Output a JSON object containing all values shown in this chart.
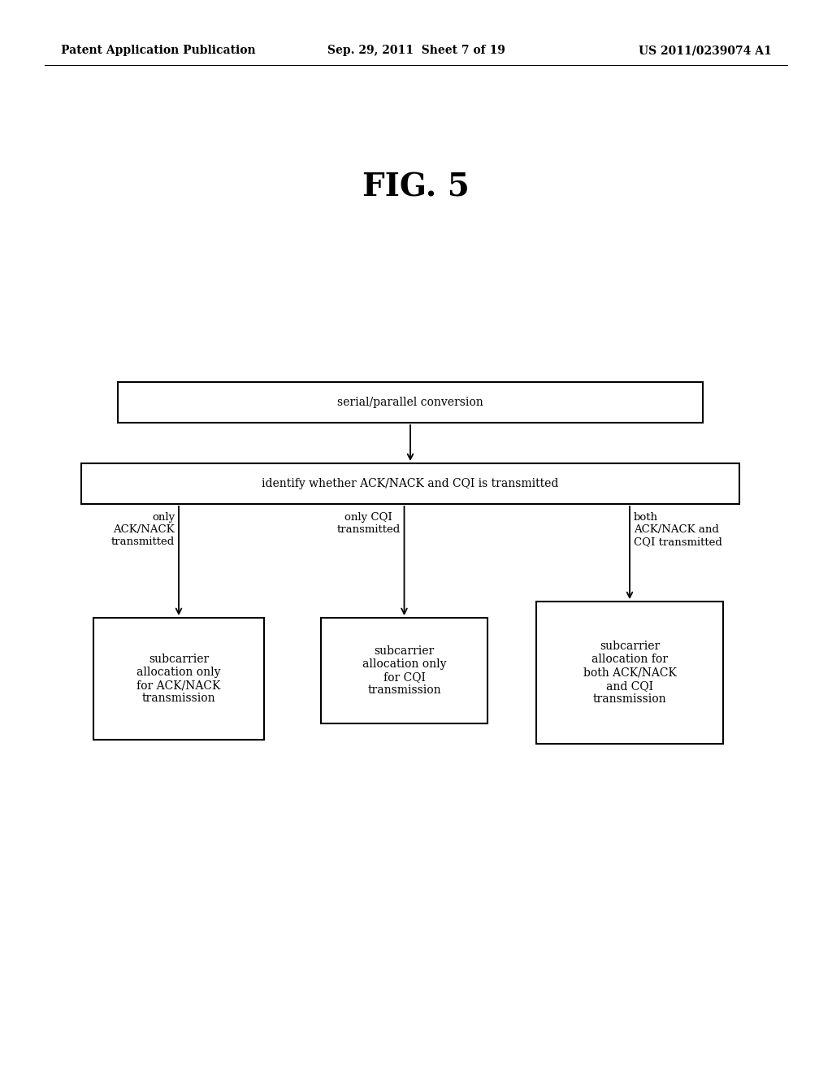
{
  "background_color": "#ffffff",
  "header_left": "Patent Application Publication",
  "header_center": "Sep. 29, 2011  Sheet 7 of 19",
  "header_right": "US 2011/0239074 A1",
  "fig_title": "FIG. 5",
  "box1_text": "serial/parallel conversion",
  "box2_text": "identify whether ACK/NACK and CQI is transmitted",
  "box3_text": "subcarrier\nallocation only\nfor ACK/NACK\ntransmission",
  "box4_text": "subcarrier\nallocation only\nfor CQI\ntransmission",
  "box5_text": "subcarrier\nallocation for\nboth ACK/NACK\nand CQI\ntransmission",
  "label1_text": "only\nACK/NACK\ntransmitted",
  "label2_text": "only CQI\ntransmitted",
  "label3_text": "both\nACK/NACK and\nCQI transmitted",
  "font_size_header": 10,
  "font_size_title": 28,
  "font_size_box": 10,
  "font_size_label": 9.5
}
